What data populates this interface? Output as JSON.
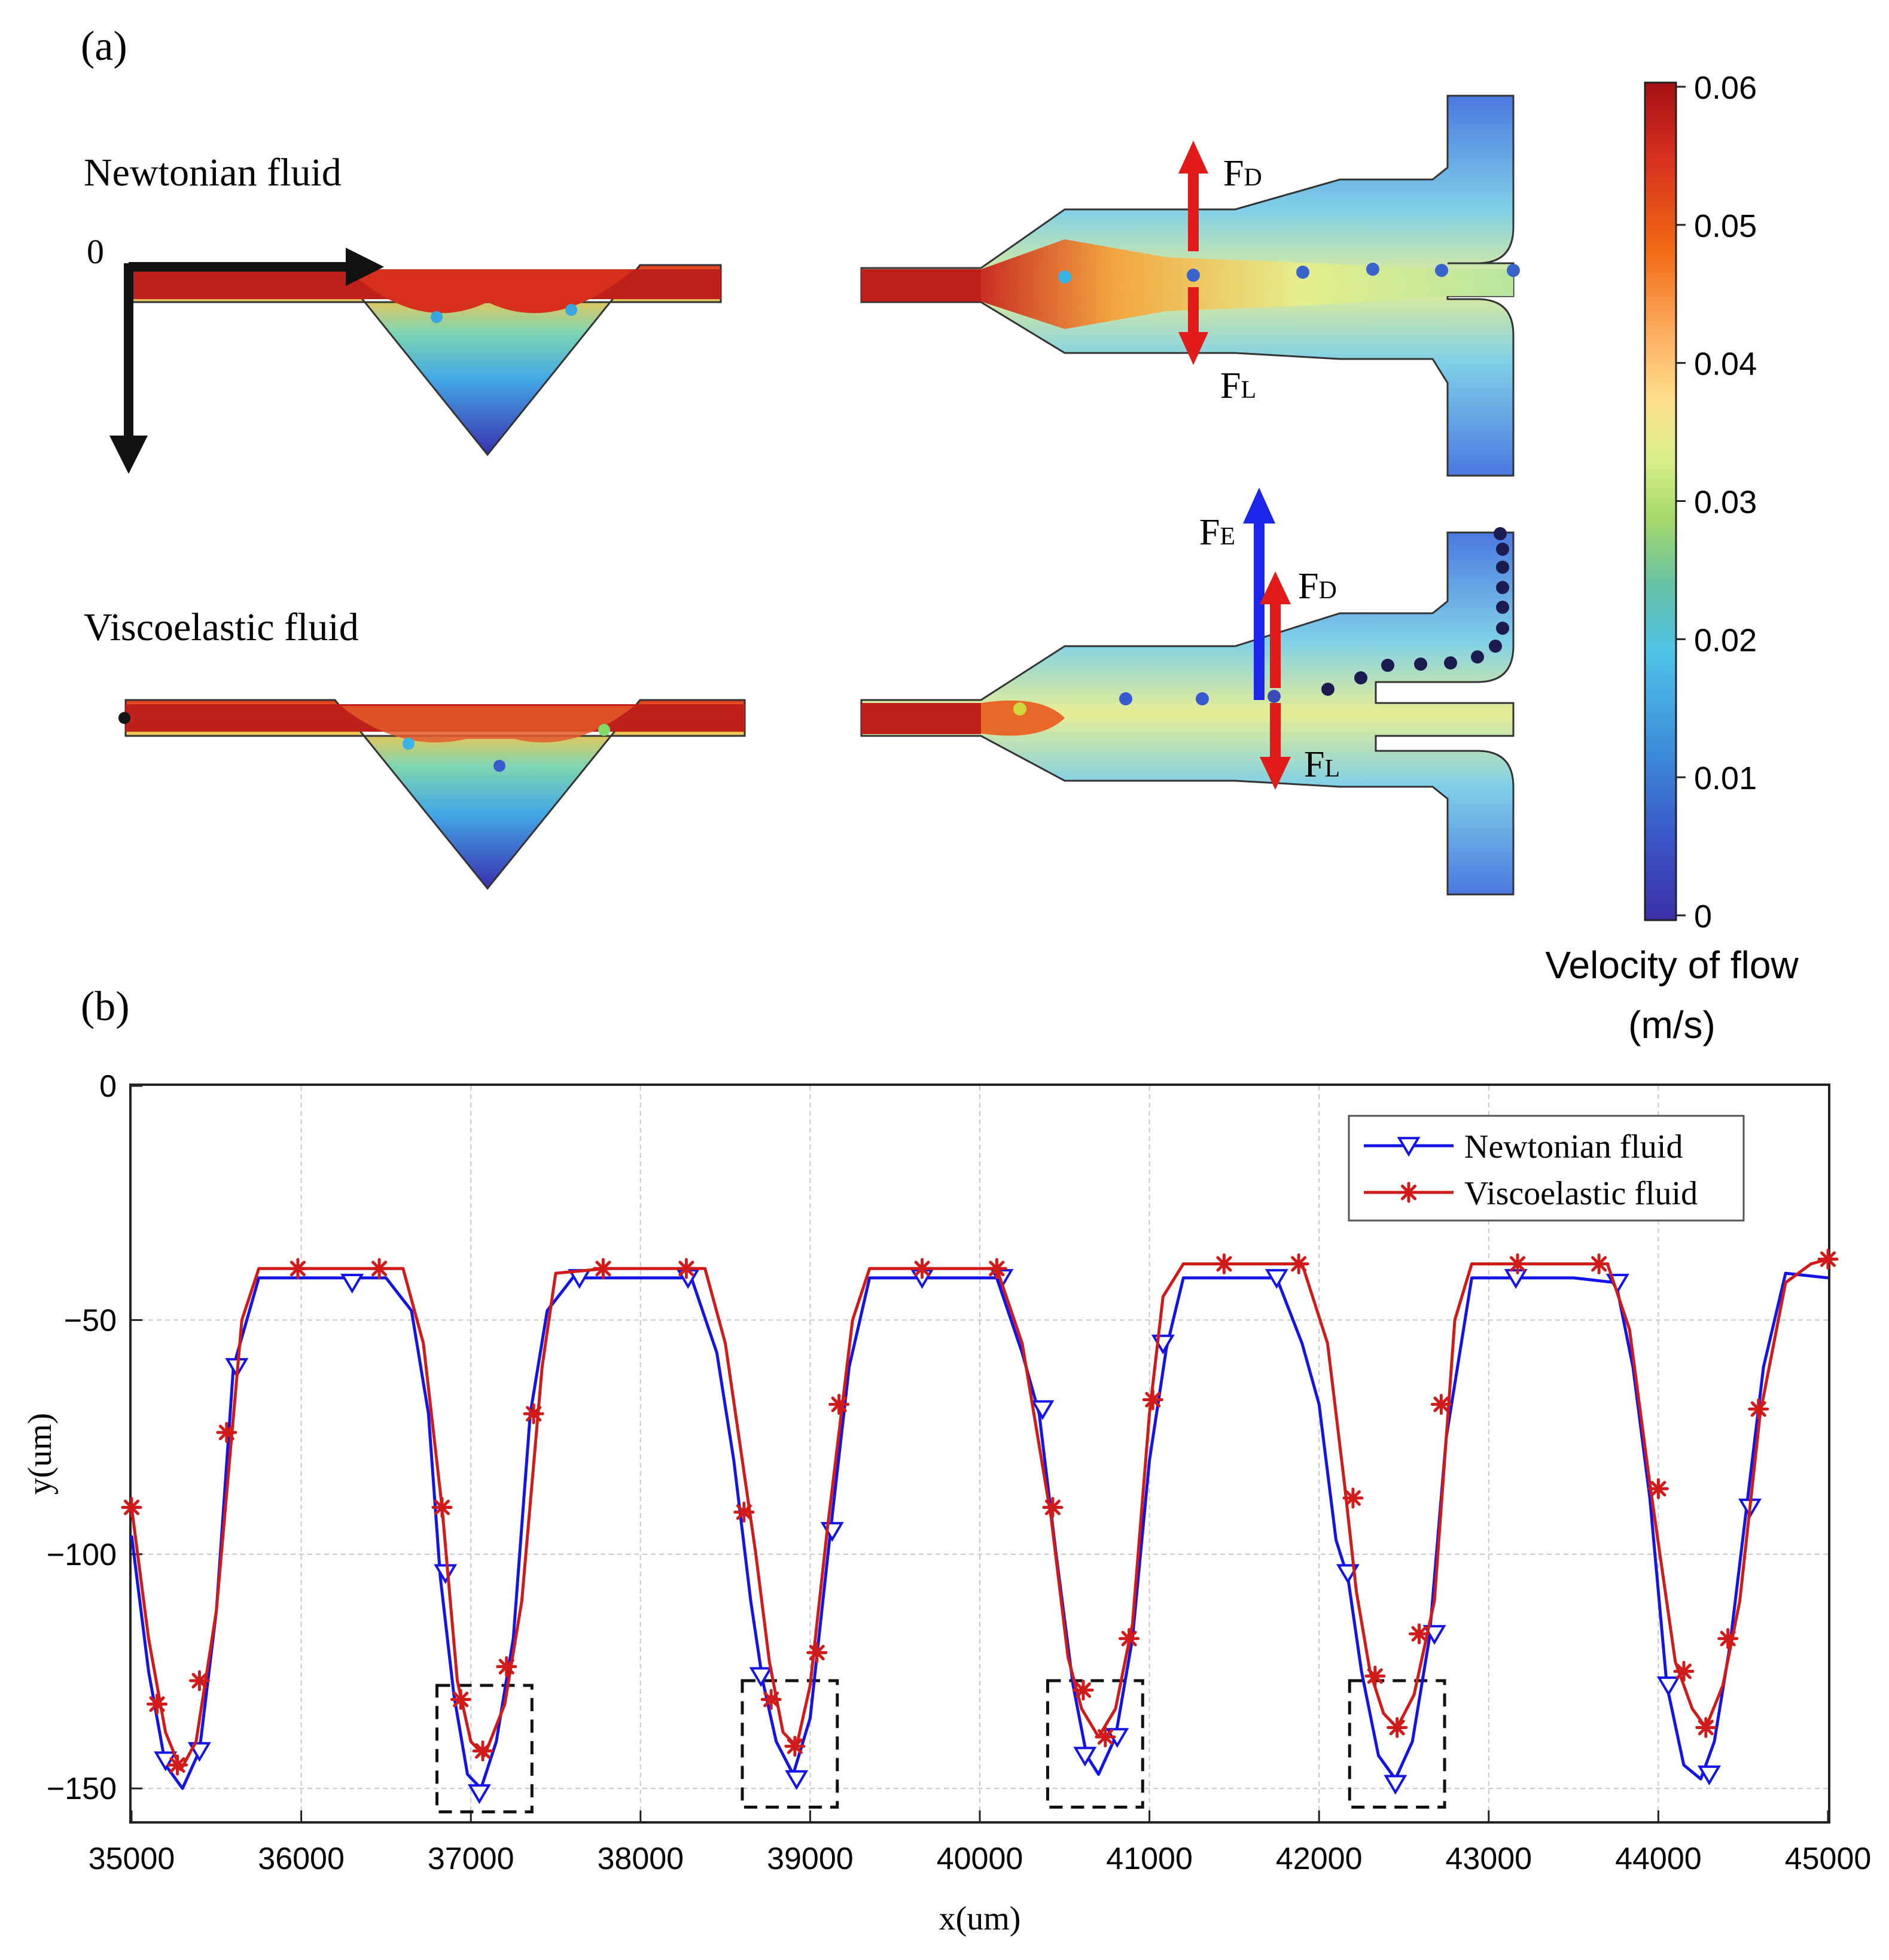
{
  "panel_a": {
    "label": "(a)",
    "newtonian_label": "Newtonian fluid",
    "viscoelastic_label": "Viscoelastic fluid",
    "origin_label": "0",
    "forces": {
      "drag_main": "F",
      "drag_sub": "D",
      "lift_main": "F",
      "lift_sub": "L",
      "elastic_main": "F",
      "elastic_sub": "E"
    },
    "colorbar": {
      "ticks": [
        "0.06",
        "0.05",
        "0.04",
        "0.03",
        "0.02",
        "0.01",
        "0"
      ],
      "title_line1": "Velocity of flow",
      "title_line2": "(m/s)",
      "colors": [
        "#a50f15",
        "#d7301f",
        "#f16913",
        "#fdae61",
        "#fee08b",
        "#d9ef8b",
        "#a6d96a",
        "#66c2a5",
        "#4fc3e8",
        "#3b8bd9",
        "#3a57c9",
        "#3b2fa8"
      ]
    }
  },
  "panel_b": {
    "label": "(b)"
  },
  "chart_data": {
    "type": "line",
    "xlabel": "x(um)",
    "ylabel": "y(um)",
    "xlim": [
      35000,
      45000
    ],
    "ylim": [
      -157,
      0
    ],
    "xticks": [
      "35000",
      "36000",
      "37000",
      "38000",
      "39000",
      "40000",
      "41000",
      "42000",
      "43000",
      "44000",
      "45000"
    ],
    "yticks": [
      "0",
      "−50",
      "−100",
      "−150"
    ],
    "ytick_values": [
      0,
      -50,
      -100,
      -150
    ],
    "grid": true,
    "legend_position": "top-right",
    "series": [
      {
        "name": "Newtonian fluid",
        "color": "#1414e6",
        "marker": "triangle-down",
        "line": [
          [
            35000,
            -96
          ],
          [
            35100,
            -125
          ],
          [
            35200,
            -145
          ],
          [
            35300,
            -150
          ],
          [
            35400,
            -142
          ],
          [
            35500,
            -112
          ],
          [
            35600,
            -60
          ],
          [
            35750,
            -41
          ],
          [
            36000,
            -41
          ],
          [
            36300,
            -41
          ],
          [
            36500,
            -41
          ],
          [
            36650,
            -48
          ],
          [
            36750,
            -70
          ],
          [
            36820,
            -105
          ],
          [
            36900,
            -130
          ],
          [
            36980,
            -147
          ],
          [
            37060,
            -150
          ],
          [
            37150,
            -140
          ],
          [
            37250,
            -118
          ],
          [
            37350,
            -70
          ],
          [
            37450,
            -48
          ],
          [
            37600,
            -41
          ],
          [
            37900,
            -41
          ],
          [
            38300,
            -41
          ],
          [
            38450,
            -57
          ],
          [
            38550,
            -80
          ],
          [
            38650,
            -110
          ],
          [
            38720,
            -127
          ],
          [
            38800,
            -140
          ],
          [
            38900,
            -147
          ],
          [
            39000,
            -135
          ],
          [
            39120,
            -95
          ],
          [
            39230,
            -60
          ],
          [
            39350,
            -41
          ],
          [
            39700,
            -41
          ],
          [
            40100,
            -41
          ],
          [
            40250,
            -57
          ],
          [
            40350,
            -70
          ],
          [
            40450,
            -100
          ],
          [
            40550,
            -128
          ],
          [
            40630,
            -143
          ],
          [
            40700,
            -147
          ],
          [
            40800,
            -139
          ],
          [
            40900,
            -118
          ],
          [
            41000,
            -80
          ],
          [
            41100,
            -56
          ],
          [
            41200,
            -41
          ],
          [
            41500,
            -41
          ],
          [
            41750,
            -41
          ],
          [
            41900,
            -55
          ],
          [
            42000,
            -68
          ],
          [
            42100,
            -97
          ],
          [
            42170,
            -105
          ],
          [
            42250,
            -125
          ],
          [
            42350,
            -143
          ],
          [
            42450,
            -148
          ],
          [
            42550,
            -140
          ],
          [
            42650,
            -118
          ],
          [
            42750,
            -75
          ],
          [
            42900,
            -41
          ],
          [
            43200,
            -41
          ],
          [
            43500,
            -41
          ],
          [
            43750,
            -42
          ],
          [
            43850,
            -60
          ],
          [
            43950,
            -88
          ],
          [
            44050,
            -128
          ],
          [
            44150,
            -145
          ],
          [
            44250,
            -148
          ],
          [
            44330,
            -140
          ],
          [
            44420,
            -120
          ],
          [
            44520,
            -90
          ],
          [
            44620,
            -60
          ],
          [
            44750,
            -40
          ],
          [
            45000,
            -41
          ]
        ],
        "markers": [
          [
            35200,
            -144
          ],
          [
            35400,
            -142
          ],
          [
            35620,
            -60
          ],
          [
            36300,
            -42
          ],
          [
            36850,
            -104
          ],
          [
            37050,
            -151
          ],
          [
            37640,
            -41
          ],
          [
            38280,
            -41
          ],
          [
            38710,
            -126
          ],
          [
            38920,
            -148
          ],
          [
            39130,
            -95
          ],
          [
            39660,
            -41
          ],
          [
            40130,
            -41
          ],
          [
            40370,
            -69
          ],
          [
            40620,
            -143
          ],
          [
            40810,
            -139
          ],
          [
            41080,
            -55
          ],
          [
            41750,
            -41
          ],
          [
            42170,
            -104
          ],
          [
            42450,
            -149
          ],
          [
            42680,
            -117
          ],
          [
            43160,
            -41
          ],
          [
            43760,
            -42
          ],
          [
            44060,
            -128
          ],
          [
            44300,
            -147
          ],
          [
            44540,
            -90
          ]
        ]
      },
      {
        "name": "Viscoelastic fluid",
        "color": "#d11a1a",
        "marker": "asterisk",
        "line": [
          [
            35000,
            -90
          ],
          [
            35100,
            -118
          ],
          [
            35200,
            -138
          ],
          [
            35290,
            -146
          ],
          [
            35380,
            -140
          ],
          [
            35500,
            -112
          ],
          [
            35650,
            -50
          ],
          [
            35750,
            -39
          ],
          [
            36000,
            -39
          ],
          [
            36300,
            -39
          ],
          [
            36600,
            -39
          ],
          [
            36720,
            -55
          ],
          [
            36830,
            -90
          ],
          [
            36920,
            -127
          ],
          [
            37000,
            -140
          ],
          [
            37080,
            -143
          ],
          [
            37200,
            -132
          ],
          [
            37300,
            -110
          ],
          [
            37420,
            -60
          ],
          [
            37500,
            -40
          ],
          [
            37800,
            -39
          ],
          [
            38100,
            -39
          ],
          [
            38380,
            -39
          ],
          [
            38500,
            -55
          ],
          [
            38600,
            -80
          ],
          [
            38680,
            -100
          ],
          [
            38760,
            -123
          ],
          [
            38840,
            -138
          ],
          [
            38920,
            -141
          ],
          [
            39000,
            -128
          ],
          [
            39100,
            -95
          ],
          [
            39250,
            -50
          ],
          [
            39350,
            -39
          ],
          [
            39700,
            -39
          ],
          [
            40100,
            -39
          ],
          [
            40250,
            -55
          ],
          [
            40420,
            -92
          ],
          [
            40520,
            -122
          ],
          [
            40600,
            -133
          ],
          [
            40700,
            -139
          ],
          [
            40800,
            -133
          ],
          [
            40900,
            -115
          ],
          [
            41000,
            -70
          ],
          [
            41080,
            -45
          ],
          [
            41200,
            -38
          ],
          [
            41600,
            -38
          ],
          [
            41900,
            -38
          ],
          [
            42050,
            -55
          ],
          [
            42150,
            -85
          ],
          [
            42220,
            -108
          ],
          [
            42300,
            -125
          ],
          [
            42380,
            -134
          ],
          [
            42460,
            -137
          ],
          [
            42560,
            -130
          ],
          [
            42680,
            -110
          ],
          [
            42800,
            -50
          ],
          [
            42900,
            -38
          ],
          [
            43200,
            -38
          ],
          [
            43500,
            -38
          ],
          [
            43700,
            -38
          ],
          [
            43830,
            -52
          ],
          [
            43950,
            -85
          ],
          [
            44100,
            -123
          ],
          [
            44200,
            -133
          ],
          [
            44280,
            -137
          ],
          [
            44380,
            -128
          ],
          [
            44480,
            -110
          ],
          [
            44600,
            -70
          ],
          [
            44750,
            -42
          ],
          [
            44900,
            -38
          ],
          [
            45000,
            -37
          ]
        ],
        "markers": [
          [
            35000,
            -90
          ],
          [
            35150,
            -132
          ],
          [
            35270,
            -145
          ],
          [
            35400,
            -127
          ],
          [
            35560,
            -74
          ],
          [
            35980,
            -39
          ],
          [
            36460,
            -39
          ],
          [
            36830,
            -90
          ],
          [
            36940,
            -131
          ],
          [
            37070,
            -142
          ],
          [
            37210,
            -124
          ],
          [
            37370,
            -70
          ],
          [
            37780,
            -39
          ],
          [
            38270,
            -39
          ],
          [
            38610,
            -91
          ],
          [
            38770,
            -131
          ],
          [
            38910,
            -141
          ],
          [
            39040,
            -121
          ],
          [
            39170,
            -68
          ],
          [
            39660,
            -39
          ],
          [
            40100,
            -39
          ],
          [
            40430,
            -90
          ],
          [
            40610,
            -129
          ],
          [
            40740,
            -139
          ],
          [
            40880,
            -118
          ],
          [
            41020,
            -67
          ],
          [
            41440,
            -38
          ],
          [
            41880,
            -38
          ],
          [
            42200,
            -88
          ],
          [
            42330,
            -126
          ],
          [
            42460,
            -137
          ],
          [
            42590,
            -117
          ],
          [
            42720,
            -68
          ],
          [
            43170,
            -38
          ],
          [
            43650,
            -38
          ],
          [
            44000,
            -86
          ],
          [
            44150,
            -125
          ],
          [
            44280,
            -137
          ],
          [
            44410,
            -118
          ],
          [
            44590,
            -69
          ],
          [
            45000,
            -37
          ]
        ]
      }
    ],
    "highlight_boxes": [
      {
        "x0": 36800,
        "x1": 37360,
        "y0": -128,
        "y1": -155
      },
      {
        "x0": 38600,
        "x1": 39160,
        "y0": -127,
        "y1": -154
      },
      {
        "x0": 40400,
        "x1": 40960,
        "y0": -127,
        "y1": -154
      },
      {
        "x0": 42180,
        "x1": 42740,
        "y0": -127,
        "y1": -154
      }
    ]
  }
}
